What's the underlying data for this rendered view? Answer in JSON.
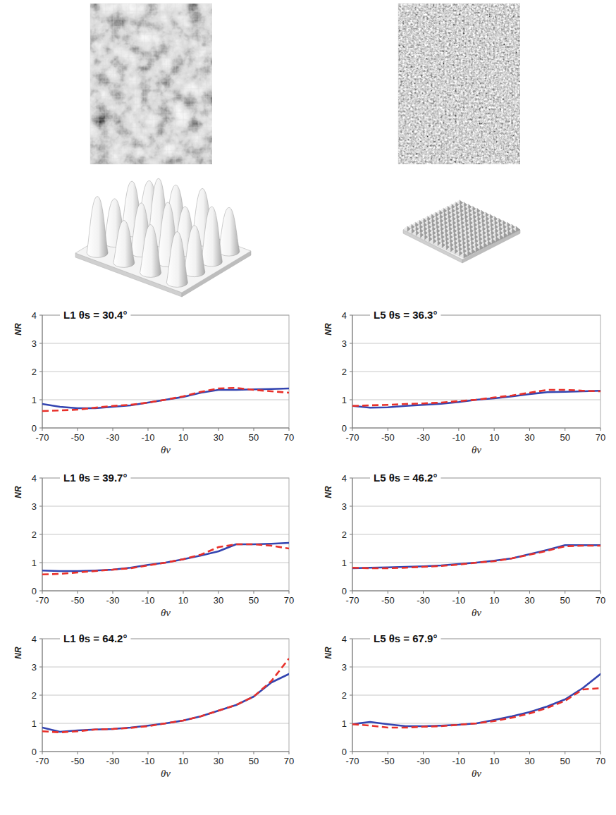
{
  "chart_data": [
    {
      "type": "line",
      "title": "L1 θs = 30.4°",
      "x_label": "θv",
      "y_label": "NR",
      "x": [
        -70,
        -60,
        -50,
        -40,
        -30,
        -20,
        -10,
        0,
        10,
        20,
        30,
        40,
        50,
        60,
        70
      ],
      "xlim": [
        -70,
        70
      ],
      "xticks": [
        -70,
        -50,
        -30,
        -10,
        10,
        30,
        50,
        70
      ],
      "ylim": [
        0,
        4
      ],
      "yticks": [
        0,
        1,
        2,
        3,
        4
      ],
      "grid": true,
      "series": [
        {
          "color": "#3344b0",
          "line_style": "solid",
          "values": [
            0.85,
            0.75,
            0.7,
            0.7,
            0.75,
            0.8,
            0.9,
            1.0,
            1.1,
            1.25,
            1.35,
            1.35,
            1.37,
            1.38,
            1.4
          ]
        },
        {
          "color": "#e8302a",
          "line_style": "dashed",
          "values": [
            0.6,
            0.62,
            0.65,
            0.72,
            0.78,
            0.82,
            0.9,
            1.0,
            1.12,
            1.28,
            1.4,
            1.42,
            1.35,
            1.3,
            1.25
          ]
        }
      ]
    },
    {
      "type": "line",
      "title": "L5 θs = 36.3°",
      "x_label": "θv",
      "y_label": "NR",
      "x": [
        -70,
        -60,
        -50,
        -40,
        -30,
        -20,
        -10,
        0,
        10,
        20,
        30,
        40,
        50,
        60,
        70
      ],
      "xlim": [
        -70,
        70
      ],
      "xticks": [
        -70,
        -50,
        -30,
        -10,
        10,
        30,
        50,
        70
      ],
      "ylim": [
        0,
        4
      ],
      "yticks": [
        0,
        1,
        2,
        3,
        4
      ],
      "grid": true,
      "series": [
        {
          "color": "#3344b0",
          "line_style": "solid",
          "values": [
            0.78,
            0.72,
            0.73,
            0.78,
            0.82,
            0.86,
            0.92,
            1.0,
            1.05,
            1.12,
            1.2,
            1.27,
            1.28,
            1.3,
            1.32
          ]
        },
        {
          "color": "#e8302a",
          "line_style": "dashed",
          "values": [
            0.78,
            0.8,
            0.82,
            0.85,
            0.87,
            0.9,
            0.95,
            1.0,
            1.08,
            1.15,
            1.25,
            1.35,
            1.35,
            1.32,
            1.3
          ]
        }
      ]
    },
    {
      "type": "line",
      "title": "L1 θs = 39.7°",
      "x_label": "θv",
      "y_label": "NR",
      "x": [
        -70,
        -60,
        -50,
        -40,
        -30,
        -20,
        -10,
        0,
        10,
        20,
        30,
        40,
        50,
        60,
        70
      ],
      "xlim": [
        -70,
        70
      ],
      "xticks": [
        -70,
        -50,
        -30,
        -10,
        10,
        30,
        50,
        70
      ],
      "ylim": [
        0,
        4
      ],
      "yticks": [
        0,
        1,
        2,
        3,
        4
      ],
      "grid": true,
      "series": [
        {
          "color": "#3344b0",
          "line_style": "solid",
          "values": [
            0.72,
            0.7,
            0.7,
            0.72,
            0.75,
            0.82,
            0.92,
            1.0,
            1.12,
            1.25,
            1.4,
            1.65,
            1.65,
            1.67,
            1.7
          ]
        },
        {
          "color": "#e8302a",
          "line_style": "dashed",
          "values": [
            0.58,
            0.6,
            0.65,
            0.7,
            0.75,
            0.8,
            0.9,
            1.0,
            1.12,
            1.28,
            1.55,
            1.65,
            1.65,
            1.6,
            1.5
          ]
        }
      ]
    },
    {
      "type": "line",
      "title": "L5 θs = 46.2°",
      "x_label": "θv",
      "y_label": "NR",
      "x": [
        -70,
        -60,
        -50,
        -40,
        -30,
        -20,
        -10,
        0,
        10,
        20,
        30,
        40,
        50,
        60,
        70
      ],
      "xlim": [
        -70,
        70
      ],
      "xticks": [
        -70,
        -50,
        -30,
        -10,
        10,
        30,
        50,
        70
      ],
      "ylim": [
        0,
        4
      ],
      "yticks": [
        0,
        1,
        2,
        3,
        4
      ],
      "grid": true,
      "series": [
        {
          "color": "#3344b0",
          "line_style": "solid",
          "values": [
            0.8,
            0.82,
            0.83,
            0.85,
            0.87,
            0.9,
            0.95,
            1.0,
            1.07,
            1.15,
            1.3,
            1.45,
            1.62,
            1.62,
            1.62
          ]
        },
        {
          "color": "#e8302a",
          "line_style": "dashed",
          "values": [
            0.82,
            0.8,
            0.8,
            0.82,
            0.85,
            0.88,
            0.93,
            1.0,
            1.05,
            1.15,
            1.28,
            1.42,
            1.58,
            1.6,
            1.6
          ]
        }
      ]
    },
    {
      "type": "line",
      "title": "L1 θs = 64.2°",
      "x_label": "θv",
      "y_label": "NR",
      "x": [
        -70,
        -60,
        -50,
        -40,
        -30,
        -20,
        -10,
        0,
        10,
        20,
        30,
        40,
        50,
        60,
        70
      ],
      "xlim": [
        -70,
        70
      ],
      "xticks": [
        -70,
        -50,
        -30,
        -10,
        10,
        30,
        50,
        70
      ],
      "ylim": [
        0,
        4
      ],
      "yticks": [
        0,
        1,
        2,
        3,
        4
      ],
      "grid": true,
      "series": [
        {
          "color": "#3344b0",
          "line_style": "solid",
          "values": [
            0.85,
            0.7,
            0.75,
            0.78,
            0.8,
            0.85,
            0.92,
            1.0,
            1.1,
            1.25,
            1.45,
            1.65,
            1.95,
            2.45,
            2.75
          ]
        },
        {
          "color": "#e8302a",
          "line_style": "dashed",
          "values": [
            0.72,
            0.68,
            0.72,
            0.78,
            0.8,
            0.84,
            0.9,
            1.0,
            1.1,
            1.25,
            1.45,
            1.65,
            1.95,
            2.5,
            3.3
          ]
        }
      ]
    },
    {
      "type": "line",
      "title": "L5 θs = 67.9°",
      "x_label": "θv",
      "y_label": "NR",
      "x": [
        -70,
        -60,
        -50,
        -40,
        -30,
        -20,
        -10,
        0,
        10,
        20,
        30,
        40,
        50,
        60,
        70
      ],
      "xlim": [
        -70,
        70
      ],
      "xticks": [
        -70,
        -50,
        -30,
        -10,
        10,
        30,
        50,
        70
      ],
      "ylim": [
        0,
        4
      ],
      "yticks": [
        0,
        1,
        2,
        3,
        4
      ],
      "grid": true,
      "series": [
        {
          "color": "#3344b0",
          "line_style": "solid",
          "values": [
            0.97,
            1.05,
            0.97,
            0.9,
            0.9,
            0.92,
            0.95,
            1.0,
            1.12,
            1.25,
            1.4,
            1.6,
            1.85,
            2.25,
            2.75
          ]
        },
        {
          "color": "#e8302a",
          "line_style": "dashed",
          "values": [
            0.97,
            0.92,
            0.85,
            0.85,
            0.88,
            0.9,
            0.95,
            1.0,
            1.08,
            1.2,
            1.35,
            1.55,
            1.8,
            2.2,
            2.25
          ]
        }
      ]
    }
  ]
}
